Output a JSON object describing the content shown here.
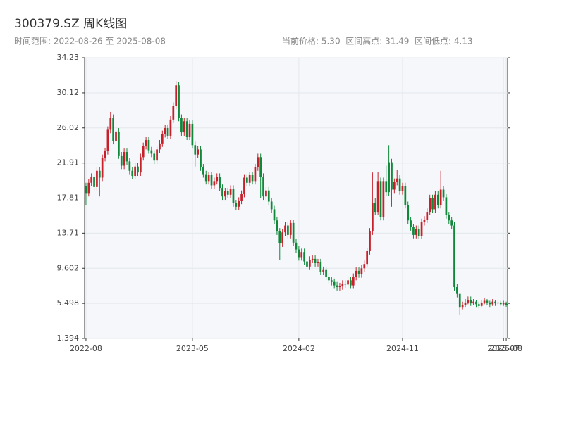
{
  "chart_data": {
    "type": "candlestick",
    "title": "300379.SZ 周K线图",
    "subtitle": "时间范围: 2022-08-26 至 2025-08-08",
    "stats": "当前价格: 5.30  区间高点: 31.49  区间低点: 4.13",
    "up_color": "#c8202a",
    "down_color": "#10883a",
    "grid": true,
    "ylim": [
      1.394,
      34.23
    ],
    "yticks": [
      1.394,
      5.498,
      9.602,
      13.71,
      17.81,
      21.91,
      26.02,
      30.12,
      34.23
    ],
    "categories": [
      "2022-08",
      null,
      null,
      null,
      null,
      null,
      null,
      null,
      null,
      null,
      null,
      null,
      null,
      null,
      null,
      null,
      null,
      null,
      null,
      null,
      null,
      null,
      null,
      null,
      null,
      null,
      null,
      null,
      null,
      null,
      null,
      null,
      null,
      null,
      null,
      null,
      null,
      null,
      null,
      "2023-05",
      null,
      null,
      null,
      null,
      null,
      null,
      null,
      null,
      null,
      null,
      null,
      null,
      null,
      null,
      null,
      null,
      null,
      null,
      null,
      null,
      null,
      null,
      null,
      null,
      null,
      null,
      null,
      null,
      null,
      null,
      null,
      null,
      null,
      null,
      null,
      null,
      null,
      null,
      "2024-02",
      null,
      null,
      null,
      null,
      null,
      null,
      null,
      null,
      null,
      null,
      null,
      null,
      null,
      null,
      null,
      null,
      null,
      null,
      null,
      null,
      null,
      null,
      null,
      null,
      null,
      null,
      null,
      null,
      null,
      null,
      null,
      null,
      null,
      null,
      null,
      null,
      null,
      "2024-11",
      null,
      null,
      null,
      null,
      null,
      null,
      null,
      null,
      null,
      null,
      null,
      null,
      null,
      null,
      null,
      null,
      null,
      null,
      null,
      null,
      null,
      null,
      null,
      null,
      null,
      null,
      null,
      null,
      null,
      null,
      null,
      null,
      null,
      null,
      null,
      null,
      "2025-07",
      "2025-08"
    ],
    "open": [
      19.2,
      18.4,
      19.6,
      20.3,
      19.1,
      21.0,
      20.2,
      22.5,
      23.3,
      25.8,
      27.2,
      24.5,
      25.6,
      22.8,
      21.6,
      23.2,
      22.1,
      21.0,
      20.4,
      21.5,
      20.8,
      22.6,
      23.9,
      24.6,
      23.4,
      23.0,
      22.2,
      23.5,
      24.2,
      25.3,
      26.0,
      25.1,
      27.0,
      28.6,
      31.0,
      27.2,
      25.5,
      26.8,
      25.0,
      26.5,
      24.0,
      22.9,
      23.5,
      21.4,
      20.6,
      19.8,
      20.5,
      19.3,
      19.8,
      20.3,
      19.0,
      18.0,
      18.6,
      18.2,
      18.9,
      17.2,
      16.8,
      17.5,
      18.3,
      20.2,
      19.6,
      20.5,
      19.8,
      21.4,
      22.6,
      20.3,
      18.0,
      18.7,
      17.4,
      16.5,
      15.2,
      13.9,
      12.5,
      13.8,
      14.6,
      13.5,
      14.9,
      12.6,
      11.8,
      10.9,
      11.5,
      10.4,
      9.8,
      10.6,
      10.7,
      10.2,
      10.3,
      9.2,
      9.4,
      8.6,
      8.2,
      8.0,
      7.6,
      7.4,
      7.5,
      7.8,
      7.7,
      8.2,
      7.6,
      8.6,
      9.3,
      8.9,
      9.6,
      10.1,
      11.6,
      13.9,
      17.2,
      16.2,
      19.8,
      15.6,
      19.8,
      22.0,
      22.0,
      18.8,
      19.7,
      20.1,
      18.6,
      19.2,
      17.0,
      15.2,
      14.4,
      13.5,
      14.2,
      13.4,
      15.0,
      15.3,
      16.2,
      17.8,
      16.5,
      18.2,
      17.0,
      18.8,
      17.9,
      15.8,
      15.2,
      14.6,
      7.4,
      6.6,
      5.0,
      5.3,
      5.6,
      5.9,
      5.5,
      5.7,
      5.4,
      5.2,
      5.6,
      5.8,
      5.6,
      5.4,
      5.7,
      5.5,
      5.6,
      5.4,
      5.5
    ],
    "high": [
      19.6,
      20.0,
      20.7,
      20.7,
      21.4,
      21.4,
      22.9,
      23.7,
      26.2,
      27.9,
      27.6,
      26.8,
      26.0,
      23.2,
      23.6,
      23.6,
      22.5,
      21.4,
      21.9,
      21.9,
      23.0,
      24.3,
      25.0,
      25.0,
      23.8,
      23.4,
      23.9,
      24.6,
      25.7,
      26.4,
      26.4,
      27.4,
      29.0,
      31.49,
      31.4,
      27.6,
      27.2,
      27.2,
      26.9,
      26.9,
      24.4,
      23.9,
      23.9,
      21.8,
      21.0,
      20.9,
      20.9,
      20.2,
      20.7,
      20.7,
      19.4,
      19.0,
      19.0,
      19.3,
      19.3,
      17.6,
      17.9,
      18.7,
      20.6,
      20.6,
      20.9,
      20.9,
      21.8,
      23.0,
      23.0,
      20.7,
      19.1,
      19.1,
      17.8,
      16.9,
      15.6,
      14.3,
      14.2,
      15.0,
      15.0,
      15.3,
      15.3,
      13.0,
      12.2,
      11.9,
      11.9,
      10.8,
      11.0,
      11.1,
      11.1,
      10.7,
      10.7,
      9.8,
      9.8,
      9.0,
      8.6,
      8.4,
      8.0,
      7.9,
      8.2,
      8.2,
      8.6,
      8.6,
      9.0,
      9.7,
      9.7,
      10.0,
      10.5,
      12.0,
      14.3,
      20.8,
      17.8,
      20.9,
      20.2,
      20.2,
      21.6,
      24.0,
      22.4,
      20.1,
      21.1,
      20.5,
      19.6,
      19.6,
      17.4,
      15.6,
      14.8,
      14.6,
      14.6,
      15.4,
      15.7,
      16.6,
      18.2,
      18.2,
      18.6,
      18.6,
      21.0,
      19.2,
      18.3,
      16.2,
      15.6,
      15.0,
      7.8,
      6.6,
      5.7,
      6.0,
      6.3,
      6.3,
      6.0,
      5.9,
      5.7,
      5.9,
      6.1,
      6.0,
      5.8,
      6.0,
      5.9,
      5.9,
      5.8,
      5.8,
      5.7
    ],
    "low": [
      17.0,
      18.0,
      19.2,
      18.7,
      18.7,
      18.0,
      19.8,
      22.1,
      22.9,
      25.4,
      24.1,
      24.1,
      22.4,
      21.2,
      21.2,
      21.7,
      20.6,
      20.0,
      20.0,
      20.4,
      20.4,
      22.2,
      23.5,
      23.0,
      22.6,
      21.8,
      21.8,
      23.1,
      23.8,
      24.9,
      24.7,
      24.7,
      26.6,
      28.2,
      26.8,
      25.1,
      25.1,
      24.6,
      24.6,
      23.6,
      21.5,
      22.5,
      21.0,
      20.2,
      19.4,
      19.4,
      18.9,
      18.9,
      19.4,
      18.6,
      17.6,
      17.6,
      17.8,
      17.8,
      16.8,
      16.4,
      16.4,
      17.1,
      17.9,
      19.2,
      19.2,
      19.4,
      19.4,
      21.0,
      17.8,
      17.6,
      17.6,
      17.0,
      16.1,
      14.8,
      13.5,
      10.6,
      12.1,
      13.4,
      13.1,
      13.1,
      12.2,
      11.4,
      10.5,
      10.5,
      10.0,
      9.4,
      9.4,
      10.2,
      9.8,
      9.8,
      8.8,
      8.8,
      8.2,
      7.8,
      7.6,
      7.2,
      7.0,
      7.0,
      7.1,
      7.3,
      7.3,
      7.2,
      7.2,
      8.2,
      8.5,
      8.5,
      9.2,
      9.7,
      11.2,
      13.5,
      15.8,
      15.8,
      15.2,
      15.2,
      18.1,
      18.1,
      16.8,
      18.4,
      19.3,
      18.2,
      18.2,
      16.6,
      14.8,
      14.0,
      13.1,
      13.1,
      13.0,
      13.0,
      14.6,
      14.9,
      15.8,
      16.1,
      16.1,
      16.6,
      16.6,
      17.5,
      15.4,
      14.8,
      14.2,
      7.0,
      6.2,
      4.13,
      4.8,
      5.0,
      5.4,
      5.2,
      5.3,
      5.0,
      4.9,
      5.0,
      5.4,
      5.3,
      5.0,
      5.2,
      5.2,
      5.3,
      5.2,
      5.2,
      5.1
    ],
    "close": [
      18.4,
      19.6,
      20.3,
      19.1,
      21.0,
      20.2,
      22.5,
      23.3,
      25.8,
      27.2,
      24.5,
      25.6,
      22.8,
      21.6,
      23.2,
      22.1,
      21.0,
      20.4,
      21.5,
      20.8,
      22.6,
      23.9,
      24.6,
      23.4,
      23.0,
      22.2,
      23.5,
      24.2,
      25.3,
      26.0,
      25.1,
      27.0,
      28.6,
      31.0,
      27.2,
      25.5,
      26.8,
      25.0,
      26.5,
      24.0,
      22.9,
      23.5,
      21.4,
      20.6,
      19.8,
      20.5,
      19.3,
      19.8,
      20.3,
      19.0,
      18.0,
      18.6,
      18.2,
      18.9,
      17.2,
      16.8,
      17.5,
      18.3,
      20.2,
      19.6,
      20.5,
      19.8,
      21.4,
      22.6,
      20.3,
      18.0,
      18.7,
      17.4,
      16.5,
      15.2,
      13.9,
      12.5,
      13.8,
      14.6,
      13.5,
      14.9,
      12.6,
      11.8,
      10.9,
      11.5,
      10.4,
      9.8,
      10.6,
      10.7,
      10.2,
      10.3,
      9.2,
      9.4,
      8.6,
      8.2,
      8.0,
      7.6,
      7.4,
      7.5,
      7.8,
      7.7,
      8.2,
      7.6,
      8.6,
      9.3,
      8.9,
      9.6,
      10.1,
      11.6,
      13.9,
      17.2,
      16.2,
      19.8,
      15.6,
      19.8,
      18.5,
      18.5,
      18.8,
      19.7,
      20.1,
      18.6,
      19.2,
      17.0,
      15.2,
      14.4,
      13.5,
      14.2,
      13.4,
      15.0,
      15.3,
      16.2,
      17.8,
      16.5,
      18.2,
      17.0,
      18.8,
      17.9,
      15.8,
      15.2,
      14.6,
      7.4,
      6.6,
      5.0,
      5.3,
      5.6,
      5.9,
      5.5,
      5.7,
      5.4,
      5.2,
      5.6,
      5.8,
      5.6,
      5.4,
      5.7,
      5.5,
      5.6,
      5.4,
      5.5,
      5.3
    ]
  }
}
